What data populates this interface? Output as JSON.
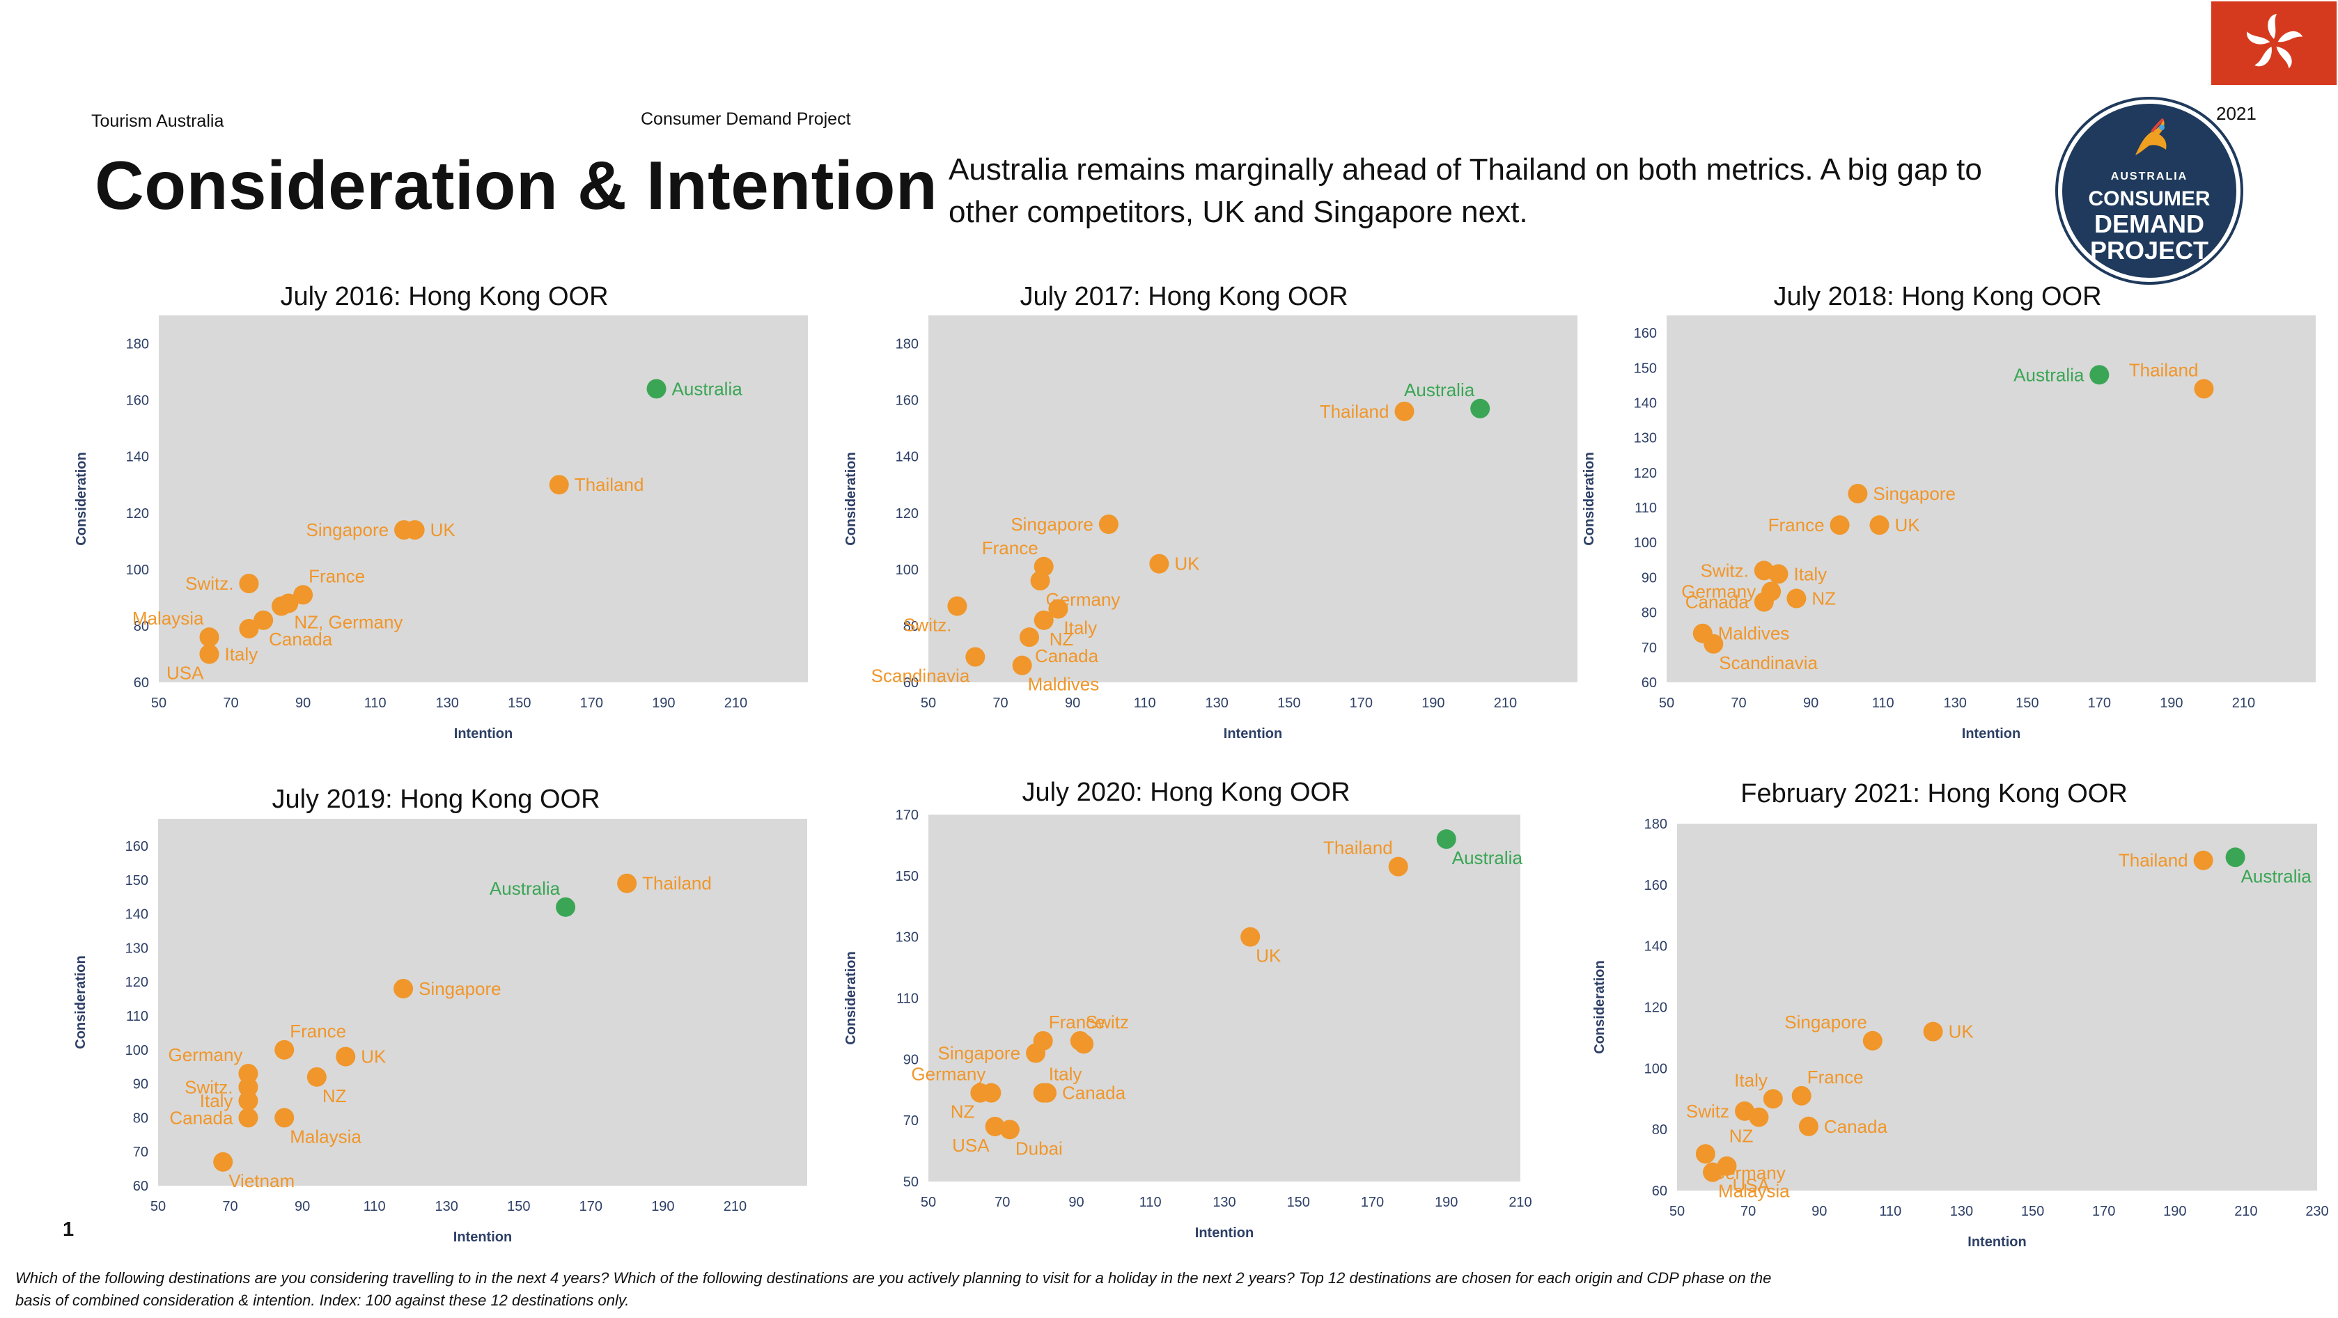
{
  "header": {
    "org": "Tourism Australia",
    "project": "Consumer Demand Project",
    "title": "Consideration & Intention",
    "subtitle_line1": "Australia remains marginally ahead of Thailand on both metrics.  A big gap to",
    "subtitle_line2": "other competitors, UK and Singapore next.",
    "year": "2021"
  },
  "badge": {
    "line1": "AUSTRALIA",
    "line2": "CONSUMER",
    "line3": "DEMAND",
    "line4": "PROJECT"
  },
  "flag": {
    "icon": "bauhinia-icon",
    "color": "#d63a1e"
  },
  "page_number": "1",
  "footnote": {
    "line1": "Which of the following destinations are you considering travelling to in the next 4 years? Which of the following destinations are you actively planning to visit for a holiday in the next 2 years? Top 12 destinations are chosen for each origin and CDP phase on the",
    "line2": "basis of combined consideration & intention. Index: 100 against these  12 destinations only."
  },
  "colors": {
    "orange": "#f0962a",
    "green": "#3aa655",
    "plot_bg": "#d9d9d9",
    "axis_text": "#2d3f66"
  },
  "chart_data": [
    {
      "type": "scatter",
      "title": "July 2016: Hong Kong OOR",
      "xlabel": "Intention",
      "ylabel": "Consideration",
      "xlim": [
        50,
        230
      ],
      "ylim": [
        60,
        190
      ],
      "xticks": [
        50,
        70,
        90,
        110,
        130,
        150,
        170,
        190,
        210
      ],
      "yticks": [
        60,
        80,
        100,
        120,
        140,
        160,
        180
      ],
      "points": [
        {
          "label": "Australia",
          "x": 188,
          "y": 164,
          "highlight": true,
          "pos": "right"
        },
        {
          "label": "Thailand",
          "x": 161,
          "y": 130,
          "highlight": false,
          "pos": "right"
        },
        {
          "label": "Singapore",
          "x": 118,
          "y": 114,
          "highlight": false,
          "pos": "left"
        },
        {
          "label": "UK",
          "x": 121,
          "y": 114,
          "highlight": false,
          "pos": "right"
        },
        {
          "label": "France",
          "x": 90,
          "y": 91,
          "highlight": false,
          "pos": "upright"
        },
        {
          "label": "Switz.",
          "x": 75,
          "y": 95,
          "highlight": false,
          "pos": "left"
        },
        {
          "label": "NZ, Germany",
          "x": 86,
          "y": 88,
          "highlight": false,
          "pos": "downright"
        },
        {
          "label": "Canada",
          "x": 79,
          "y": 82,
          "highlight": false,
          "pos": "downright"
        },
        {
          "label": "Malaysia",
          "x": 64,
          "y": 76,
          "highlight": false,
          "pos": "upleft"
        },
        {
          "label": "Italy",
          "x": 64,
          "y": 70,
          "highlight": false,
          "pos": "right"
        },
        {
          "label": "USA",
          "x": 64,
          "y": 70,
          "highlight": false,
          "pos": "downleft"
        },
        {
          "label": "",
          "x": 75,
          "y": 79,
          "highlight": false,
          "pos": "none"
        },
        {
          "label": "",
          "x": 84,
          "y": 87,
          "highlight": false,
          "pos": "none"
        }
      ]
    },
    {
      "type": "scatter",
      "title": "July 2017: Hong Kong OOR",
      "xlabel": "Intention",
      "ylabel": "Consideration",
      "xlim": [
        50,
        230
      ],
      "ylim": [
        60,
        190
      ],
      "xticks": [
        50,
        70,
        90,
        110,
        130,
        150,
        170,
        190,
        210
      ],
      "yticks": [
        60,
        80,
        100,
        120,
        140,
        160,
        180
      ],
      "points": [
        {
          "label": "Australia",
          "x": 203,
          "y": 157,
          "highlight": true,
          "pos": "upleft"
        },
        {
          "label": "Thailand",
          "x": 182,
          "y": 156,
          "highlight": false,
          "pos": "left"
        },
        {
          "label": "UK",
          "x": 114,
          "y": 102,
          "highlight": false,
          "pos": "right"
        },
        {
          "label": "Singapore",
          "x": 100,
          "y": 116,
          "highlight": false,
          "pos": "left"
        },
        {
          "label": "France",
          "x": 82,
          "y": 101,
          "highlight": false,
          "pos": "upleft"
        },
        {
          "label": "Germany",
          "x": 81,
          "y": 96,
          "highlight": false,
          "pos": "downright"
        },
        {
          "label": "Switz.",
          "x": 58,
          "y": 87,
          "highlight": false,
          "pos": "downleft"
        },
        {
          "label": "Italy",
          "x": 86,
          "y": 86,
          "highlight": false,
          "pos": "downright"
        },
        {
          "label": "NZ",
          "x": 82,
          "y": 82,
          "highlight": false,
          "pos": "downright"
        },
        {
          "label": "Canada",
          "x": 78,
          "y": 76,
          "highlight": false,
          "pos": "downright"
        },
        {
          "label": "Scandinavia",
          "x": 63,
          "y": 69,
          "highlight": false,
          "pos": "downleft"
        },
        {
          "label": "Maldives",
          "x": 76,
          "y": 66,
          "highlight": false,
          "pos": "downright"
        }
      ]
    },
    {
      "type": "scatter",
      "title": "July 2018: Hong Kong OOR",
      "xlabel": "Intention",
      "ylabel": "Consideration",
      "xlim": [
        50,
        230
      ],
      "ylim": [
        60,
        165
      ],
      "xticks": [
        50,
        70,
        90,
        110,
        130,
        150,
        170,
        190,
        210
      ],
      "yticks": [
        60,
        70,
        80,
        90,
        100,
        110,
        120,
        130,
        140,
        150,
        160
      ],
      "points": [
        {
          "label": "Australia",
          "x": 170,
          "y": 148,
          "highlight": true,
          "pos": "left"
        },
        {
          "label": "Thailand",
          "x": 199,
          "y": 144,
          "highlight": false,
          "pos": "upleft"
        },
        {
          "label": "Singapore",
          "x": 103,
          "y": 114,
          "highlight": false,
          "pos": "right"
        },
        {
          "label": "France",
          "x": 98,
          "y": 105,
          "highlight": false,
          "pos": "left"
        },
        {
          "label": "UK",
          "x": 109,
          "y": 105,
          "highlight": false,
          "pos": "right"
        },
        {
          "label": "Switz.",
          "x": 77,
          "y": 92,
          "highlight": false,
          "pos": "left"
        },
        {
          "label": "Italy",
          "x": 81,
          "y": 91,
          "highlight": false,
          "pos": "right"
        },
        {
          "label": "Germany",
          "x": 79,
          "y": 86,
          "highlight": false,
          "pos": "left"
        },
        {
          "label": "NZ",
          "x": 86,
          "y": 84,
          "highlight": false,
          "pos": "right"
        },
        {
          "label": "Canada",
          "x": 77,
          "y": 83,
          "highlight": false,
          "pos": "left"
        },
        {
          "label": "Maldives",
          "x": 60,
          "y": 74,
          "highlight": false,
          "pos": "right"
        },
        {
          "label": "Scandinavia",
          "x": 63,
          "y": 71,
          "highlight": false,
          "pos": "downright"
        }
      ]
    },
    {
      "type": "scatter",
      "title": "July 2019: Hong Kong OOR",
      "xlabel": "Intention",
      "ylabel": "Consideration",
      "xlim": [
        50,
        230
      ],
      "ylim": [
        60,
        168
      ],
      "xticks": [
        50,
        70,
        90,
        110,
        130,
        150,
        170,
        190,
        210
      ],
      "yticks": [
        60,
        70,
        80,
        90,
        100,
        110,
        120,
        130,
        140,
        150,
        160
      ],
      "points": [
        {
          "label": "Australia",
          "x": 163,
          "y": 142,
          "highlight": true,
          "pos": "upleft"
        },
        {
          "label": "Thailand",
          "x": 180,
          "y": 149,
          "highlight": false,
          "pos": "right"
        },
        {
          "label": "Singapore",
          "x": 118,
          "y": 118,
          "highlight": false,
          "pos": "right"
        },
        {
          "label": "France",
          "x": 85,
          "y": 100,
          "highlight": false,
          "pos": "upright"
        },
        {
          "label": "UK",
          "x": 102,
          "y": 98,
          "highlight": false,
          "pos": "right"
        },
        {
          "label": "Germany",
          "x": 75,
          "y": 93,
          "highlight": false,
          "pos": "upleft"
        },
        {
          "label": "Switz.",
          "x": 75,
          "y": 89,
          "highlight": false,
          "pos": "left"
        },
        {
          "label": "NZ",
          "x": 94,
          "y": 92,
          "highlight": false,
          "pos": "downright"
        },
        {
          "label": "Italy",
          "x": 75,
          "y": 85,
          "highlight": false,
          "pos": "left"
        },
        {
          "label": "Canada",
          "x": 75,
          "y": 80,
          "highlight": false,
          "pos": "left"
        },
        {
          "label": "Malaysia",
          "x": 85,
          "y": 80,
          "highlight": false,
          "pos": "downright"
        },
        {
          "label": "Vietnam",
          "x": 68,
          "y": 67,
          "highlight": false,
          "pos": "downright"
        }
      ]
    },
    {
      "type": "scatter",
      "title": "July 2020: Hong Kong OOR",
      "xlabel": "Intention",
      "ylabel": "Consideration",
      "xlim": [
        50,
        210
      ],
      "ylim": [
        50,
        170
      ],
      "xticks": [
        50,
        70,
        90,
        110,
        130,
        150,
        170,
        190,
        210
      ],
      "yticks": [
        50,
        70,
        90,
        110,
        130,
        150,
        170
      ],
      "points": [
        {
          "label": "Australia",
          "x": 190,
          "y": 162,
          "highlight": true,
          "pos": "downright"
        },
        {
          "label": "Thailand",
          "x": 177,
          "y": 153,
          "highlight": false,
          "pos": "upleft"
        },
        {
          "label": "UK",
          "x": 137,
          "y": 130,
          "highlight": false,
          "pos": "downright"
        },
        {
          "label": "France",
          "x": 81,
          "y": 96,
          "highlight": false,
          "pos": "upright"
        },
        {
          "label": "Singapore",
          "x": 79,
          "y": 92,
          "highlight": false,
          "pos": "left"
        },
        {
          "label": "Switz",
          "x": 91,
          "y": 96,
          "highlight": false,
          "pos": "upright"
        },
        {
          "label": "",
          "x": 92,
          "y": 95,
          "highlight": false,
          "pos": "none"
        },
        {
          "label": "Germany",
          "x": 67,
          "y": 79,
          "highlight": false,
          "pos": "upleft"
        },
        {
          "label": "Italy",
          "x": 81,
          "y": 79,
          "highlight": false,
          "pos": "upright"
        },
        {
          "label": "NZ",
          "x": 64,
          "y": 79,
          "highlight": false,
          "pos": "downleft"
        },
        {
          "label": "Canada",
          "x": 82,
          "y": 79,
          "highlight": false,
          "pos": "right"
        },
        {
          "label": "USA",
          "x": 68,
          "y": 68,
          "highlight": false,
          "pos": "downleft"
        },
        {
          "label": "Dubai",
          "x": 72,
          "y": 67,
          "highlight": false,
          "pos": "downright"
        }
      ]
    },
    {
      "type": "scatter",
      "title": "February 2021: Hong Kong OOR",
      "xlabel": "Intention",
      "ylabel": "Consideration",
      "xlim": [
        50,
        230
      ],
      "ylim": [
        60,
        180
      ],
      "xticks": [
        50,
        70,
        90,
        110,
        130,
        150,
        170,
        190,
        210,
        230
      ],
      "yticks": [
        60,
        80,
        100,
        120,
        140,
        160,
        180
      ],
      "points": [
        {
          "label": "Australia",
          "x": 207,
          "y": 169,
          "highlight": true,
          "pos": "downright"
        },
        {
          "label": "Thailand",
          "x": 198,
          "y": 168,
          "highlight": false,
          "pos": "left"
        },
        {
          "label": "Singapore",
          "x": 105,
          "y": 109,
          "highlight": false,
          "pos": "upleft"
        },
        {
          "label": "UK",
          "x": 122,
          "y": 112,
          "highlight": false,
          "pos": "right"
        },
        {
          "label": "France",
          "x": 85,
          "y": 91,
          "highlight": false,
          "pos": "upright"
        },
        {
          "label": "Italy",
          "x": 77,
          "y": 90,
          "highlight": false,
          "pos": "upleft"
        },
        {
          "label": "Switz",
          "x": 69,
          "y": 86,
          "highlight": false,
          "pos": "left"
        },
        {
          "label": "NZ",
          "x": 73,
          "y": 84,
          "highlight": false,
          "pos": "downleft"
        },
        {
          "label": "Canada",
          "x": 87,
          "y": 81,
          "highlight": false,
          "pos": "right"
        },
        {
          "label": "Germany",
          "x": 58,
          "y": 72,
          "highlight": false,
          "pos": "downright"
        },
        {
          "label": "USA",
          "x": 64,
          "y": 68,
          "highlight": false,
          "pos": "downright"
        },
        {
          "label": "Malaysia",
          "x": 60,
          "y": 66,
          "highlight": false,
          "pos": "downright"
        }
      ]
    }
  ]
}
